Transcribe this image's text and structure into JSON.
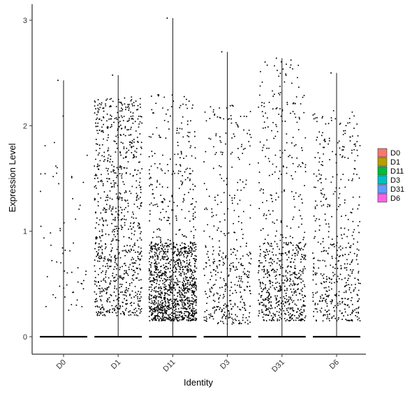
{
  "chart_data": {
    "type": "scatter",
    "subtype": "violin-jitter",
    "title": "",
    "xlabel": "Identity",
    "ylabel": "Expression Level",
    "categories": [
      "D0",
      "D1",
      "D11",
      "D3",
      "D31",
      "D6"
    ],
    "ylim": [
      -0.17,
      3.03
    ],
    "yticks": [
      0,
      1,
      2,
      3
    ],
    "grid": false,
    "legend": {
      "position": "right",
      "entries": [
        {
          "label": "D0",
          "color": "#F8766D"
        },
        {
          "label": "D1",
          "color": "#B79F00"
        },
        {
          "label": "D11",
          "color": "#00BA38"
        },
        {
          "label": "D3",
          "color": "#00BFC4"
        },
        {
          "label": "D31",
          "color": "#619CFF"
        },
        {
          "label": "D6",
          "color": "#F564E3"
        }
      ]
    },
    "groups": [
      {
        "name": "D0",
        "max": 2.43,
        "n_points": 60,
        "low_share": 0.4,
        "upper": 2.1,
        "min_pos": 0.25
      },
      {
        "name": "D1",
        "max": 2.48,
        "n_points": 900,
        "low_share": 0.18,
        "upper": 2.28,
        "min_pos": 0.2
      },
      {
        "name": "D11",
        "max": 3.02,
        "n_points": 1300,
        "low_share": 0.72,
        "upper": 2.3,
        "min_pos": 0.15
      },
      {
        "name": "D3",
        "max": 2.7,
        "n_points": 420,
        "low_share": 0.45,
        "upper": 2.2,
        "min_pos": 0.12
      },
      {
        "name": "D31",
        "max": 2.64,
        "n_points": 700,
        "low_share": 0.55,
        "upper": 2.63,
        "min_pos": 0.15
      },
      {
        "name": "D6",
        "max": 2.5,
        "n_points": 480,
        "low_share": 0.35,
        "upper": 2.15,
        "min_pos": 0.15
      }
    ],
    "point_color": "#000000"
  }
}
